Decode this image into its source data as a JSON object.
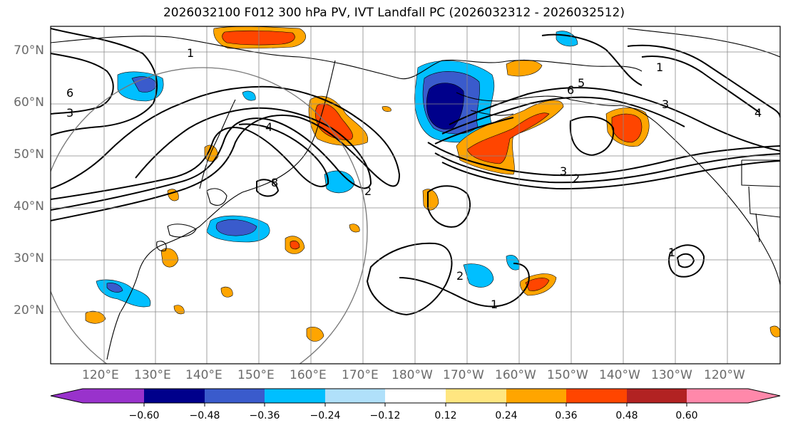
{
  "title": "2026032100 F012 300 hPa PV, IVT Landfall PC (2026032312 - 2026032512)",
  "lat_labels": [
    "70°N",
    "60°N",
    "50°N",
    "40°N",
    "30°N",
    "20°N"
  ],
  "lon_labels": [
    "120°E",
    "130°E",
    "140°E",
    "150°E",
    "160°E",
    "170°E",
    "180°W",
    "170°W",
    "160°W",
    "150°W",
    "140°W",
    "130°W",
    "120°W"
  ],
  "contour_labels": [
    "1",
    "3",
    "6",
    "4",
    "8",
    "6",
    "5",
    "2",
    "3",
    "4",
    "1",
    "3",
    "2",
    "1",
    "2",
    "1"
  ],
  "colorbar": {
    "ticks": [
      "−0.60",
      "−0.48",
      "−0.36",
      "−0.24",
      "−0.12",
      "0.12",
      "0.24",
      "0.36",
      "0.48",
      "0.60"
    ],
    "colors": [
      "#9932cc",
      "#00008b",
      "#3a5bcc",
      "#00bfff",
      "#b0e0fa",
      "#ffffff",
      "#ffe680",
      "#ffa500",
      "#ff4500",
      "#b22222",
      "#ff88aa"
    ]
  }
}
